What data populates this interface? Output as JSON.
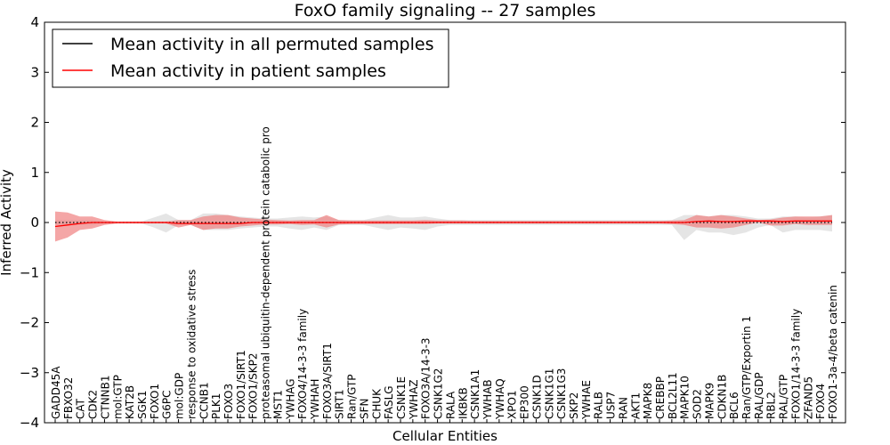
{
  "chart_data": {
    "type": "line",
    "title": "FoxO family signaling -- 27 samples",
    "xlabel": "Cellular Entities",
    "ylabel": "Inferred Activity",
    "ylim": [
      -4,
      4
    ],
    "yticks": [
      -4,
      -3,
      -2,
      -1,
      0,
      1,
      2,
      3,
      4
    ],
    "ytick_labels": [
      "−4",
      "−3",
      "−2",
      "−1",
      "0",
      "1",
      "2",
      "3",
      "4"
    ],
    "grid": false,
    "legend_position": "top-left",
    "categories": [
      "GADD45A",
      "FBXO32",
      "CAT",
      "CDK2",
      "CTNNB1",
      "mol:GTP",
      "KAT2B",
      "SGK1",
      "FOXO1",
      "G6PC",
      "mol:GDP",
      "response to oxidative stress",
      "CCNB1",
      "PLK1",
      "FOXO3",
      "FOXO1/SIRT1",
      "FOXO1/SKP2",
      "proteasomal ubiquitin-dependent protein catabolic pro",
      "MST1",
      "YWHAG",
      "FOXO4/14-3-3 family",
      "YWHAH",
      "FOXO3A/SIRT1",
      "SIRT1",
      "Ran/GTP",
      "SFN",
      "CHUK",
      "FASLG",
      "CSNK1E",
      "YWHAZ",
      "FOXO3A/14-3-3",
      "CSNK1G2",
      "RALA",
      "IKBKB",
      "CSNK1A1",
      "YWHAB",
      "YWHAQ",
      "XPO1",
      "EP300",
      "CSNK1D",
      "CSNK1G1",
      "CSNK1G3",
      "SKP2",
      "YWHAE",
      "RALB",
      "USP7",
      "RAN",
      "AKT1",
      "MAPK8",
      "CREBBP",
      "BCL2L11",
      "MAPK10",
      "SOD2",
      "MAPK9",
      "CDKN1B",
      "BCL6",
      "Ran/GTP/Exportin 1",
      "RAL/GDP",
      "RBL2",
      "RAL/GTP",
      "FOXO1/14-3-3 family",
      "ZFAND5",
      "FOXO4",
      "FOXO1-3a-4/beta catenin"
    ],
    "series": [
      {
        "name": "Mean activity in all permuted samples",
        "color": "#000000",
        "style": "dotted",
        "values": [
          0.0,
          0.0,
          0.0,
          0.0,
          0.0,
          0.0,
          0.0,
          0.0,
          0.0,
          0.0,
          0.0,
          0.0,
          0.0,
          0.0,
          0.0,
          0.0,
          0.0,
          0.0,
          0.0,
          0.0,
          0.0,
          0.0,
          0.0,
          0.0,
          0.0,
          0.0,
          0.0,
          0.0,
          0.0,
          0.0,
          0.0,
          0.0,
          0.0,
          0.0,
          0.0,
          0.0,
          0.0,
          0.0,
          0.0,
          0.0,
          0.0,
          0.0,
          0.0,
          0.0,
          0.0,
          0.0,
          0.0,
          0.0,
          0.0,
          0.0,
          0.0,
          0.0,
          0.0,
          0.0,
          0.0,
          0.0,
          0.0,
          0.0,
          0.0,
          0.0,
          0.0,
          0.0,
          0.0,
          0.0
        ],
        "lower": [
          -0.05,
          -0.05,
          -0.05,
          -0.05,
          -0.02,
          -0.02,
          -0.02,
          -0.02,
          -0.1,
          -0.2,
          -0.05,
          -0.05,
          -0.15,
          -0.15,
          -0.15,
          -0.12,
          -0.1,
          -0.08,
          -0.08,
          -0.12,
          -0.15,
          -0.1,
          -0.15,
          -0.05,
          -0.05,
          -0.05,
          -0.1,
          -0.15,
          -0.1,
          -0.12,
          -0.15,
          -0.08,
          -0.05,
          -0.05,
          -0.05,
          -0.05,
          -0.05,
          -0.05,
          -0.05,
          -0.05,
          -0.05,
          -0.05,
          -0.05,
          -0.05,
          -0.05,
          -0.05,
          -0.05,
          -0.05,
          -0.05,
          -0.05,
          -0.05,
          -0.35,
          -0.15,
          -0.2,
          -0.2,
          -0.25,
          -0.2,
          -0.1,
          -0.05,
          -0.2,
          -0.15,
          -0.15,
          -0.15,
          -0.18
        ],
        "upper": [
          0.05,
          0.05,
          0.05,
          0.05,
          0.02,
          0.02,
          0.02,
          0.02,
          0.1,
          0.18,
          0.05,
          0.05,
          0.18,
          0.18,
          0.15,
          0.12,
          0.1,
          0.08,
          0.08,
          0.1,
          0.12,
          0.1,
          0.12,
          0.05,
          0.05,
          0.05,
          0.1,
          0.15,
          0.1,
          0.1,
          0.12,
          0.08,
          0.05,
          0.05,
          0.05,
          0.05,
          0.05,
          0.05,
          0.05,
          0.05,
          0.05,
          0.05,
          0.05,
          0.05,
          0.05,
          0.05,
          0.05,
          0.05,
          0.05,
          0.05,
          0.05,
          0.15,
          0.15,
          0.12,
          0.15,
          0.15,
          0.12,
          0.08,
          0.08,
          0.12,
          0.12,
          0.1,
          0.12,
          0.15
        ]
      },
      {
        "name": "Mean activity in patient samples",
        "color": "#ff0000",
        "style": "solid",
        "values": [
          -0.08,
          -0.05,
          -0.02,
          0.0,
          0.0,
          0.0,
          0.0,
          0.0,
          0.0,
          0.0,
          -0.02,
          -0.02,
          -0.02,
          -0.02,
          -0.02,
          -0.02,
          0.0,
          0.0,
          0.0,
          0.0,
          0.0,
          0.0,
          0.0,
          0.0,
          0.0,
          0.0,
          0.0,
          0.0,
          0.0,
          0.0,
          0.0,
          0.0,
          0.0,
          0.0,
          0.0,
          0.0,
          0.0,
          0.0,
          0.0,
          0.0,
          0.0,
          0.0,
          0.0,
          0.0,
          0.0,
          0.0,
          0.0,
          0.0,
          0.0,
          0.0,
          0.0,
          0.0,
          0.02,
          0.03,
          0.02,
          0.02,
          0.03,
          0.03,
          0.03,
          0.02,
          0.03,
          0.03,
          0.03,
          0.03
        ],
        "lower": [
          -0.38,
          -0.3,
          -0.15,
          -0.12,
          -0.05,
          -0.02,
          -0.02,
          -0.02,
          -0.02,
          -0.02,
          -0.1,
          -0.05,
          -0.15,
          -0.12,
          -0.12,
          -0.08,
          -0.06,
          -0.04,
          -0.04,
          -0.03,
          -0.05,
          -0.04,
          -0.1,
          -0.04,
          -0.03,
          -0.03,
          -0.03,
          -0.03,
          -0.03,
          -0.03,
          -0.03,
          -0.02,
          -0.02,
          -0.02,
          -0.02,
          -0.02,
          -0.02,
          -0.02,
          -0.02,
          -0.02,
          -0.02,
          -0.02,
          -0.02,
          -0.02,
          -0.02,
          -0.02,
          -0.02,
          -0.02,
          -0.02,
          -0.02,
          -0.03,
          -0.05,
          -0.1,
          -0.1,
          -0.12,
          -0.1,
          -0.05,
          0.0,
          -0.06,
          -0.06,
          -0.03,
          -0.05,
          -0.05,
          -0.05
        ],
        "upper": [
          0.22,
          0.2,
          0.12,
          0.12,
          0.05,
          0.02,
          0.02,
          0.02,
          0.02,
          0.02,
          0.05,
          0.05,
          0.12,
          0.15,
          0.15,
          0.1,
          0.08,
          0.06,
          0.05,
          0.04,
          0.05,
          0.05,
          0.15,
          0.05,
          0.04,
          0.04,
          0.04,
          0.04,
          0.04,
          0.04,
          0.05,
          0.04,
          0.04,
          0.04,
          0.03,
          0.03,
          0.03,
          0.03,
          0.03,
          0.03,
          0.03,
          0.03,
          0.03,
          0.03,
          0.03,
          0.03,
          0.03,
          0.03,
          0.03,
          0.03,
          0.04,
          0.05,
          0.15,
          0.12,
          0.15,
          0.12,
          0.08,
          0.05,
          0.06,
          0.1,
          0.12,
          0.12,
          0.12,
          0.15
        ]
      }
    ]
  }
}
